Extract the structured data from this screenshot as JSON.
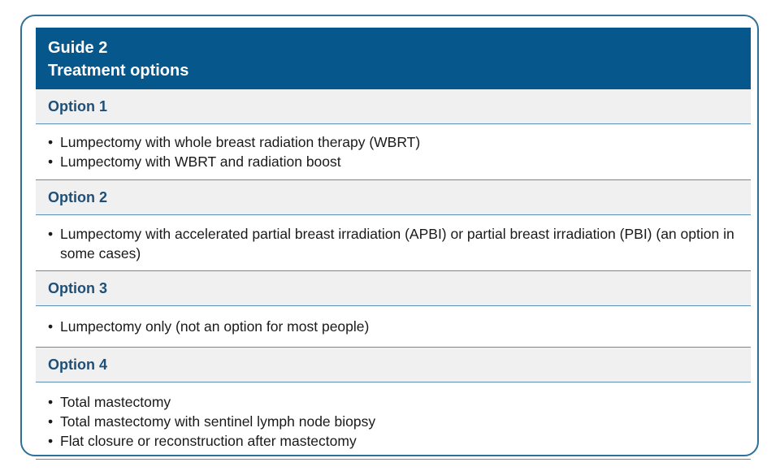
{
  "header": {
    "line1": "Guide 2",
    "line2": "Treatment options"
  },
  "colors": {
    "header_bg": "#05578c",
    "option_label": "#1f4f77",
    "option_header_bg": "#f0f0f0",
    "rule": "#5b8fb5",
    "frame": "#2f6f9a"
  },
  "options": [
    {
      "label": "Option 1",
      "items": [
        "Lumpectomy with whole breast radiation therapy (WBRT)",
        "Lumpectomy with WBRT and radiation boost"
      ]
    },
    {
      "label": "Option 2",
      "items": [
        "Lumpectomy with accelerated partial breast irradiation (APBI) or partial breast irradiation (PBI) (an option in some cases)"
      ]
    },
    {
      "label": "Option 3",
      "items": [
        "Lumpectomy only (not an option for most people)"
      ]
    },
    {
      "label": "Option 4",
      "items": [
        "Total mastectomy",
        "Total mastectomy with sentinel lymph node biopsy",
        "Flat closure or reconstruction after mastectomy"
      ]
    }
  ],
  "bullet_char": "•"
}
